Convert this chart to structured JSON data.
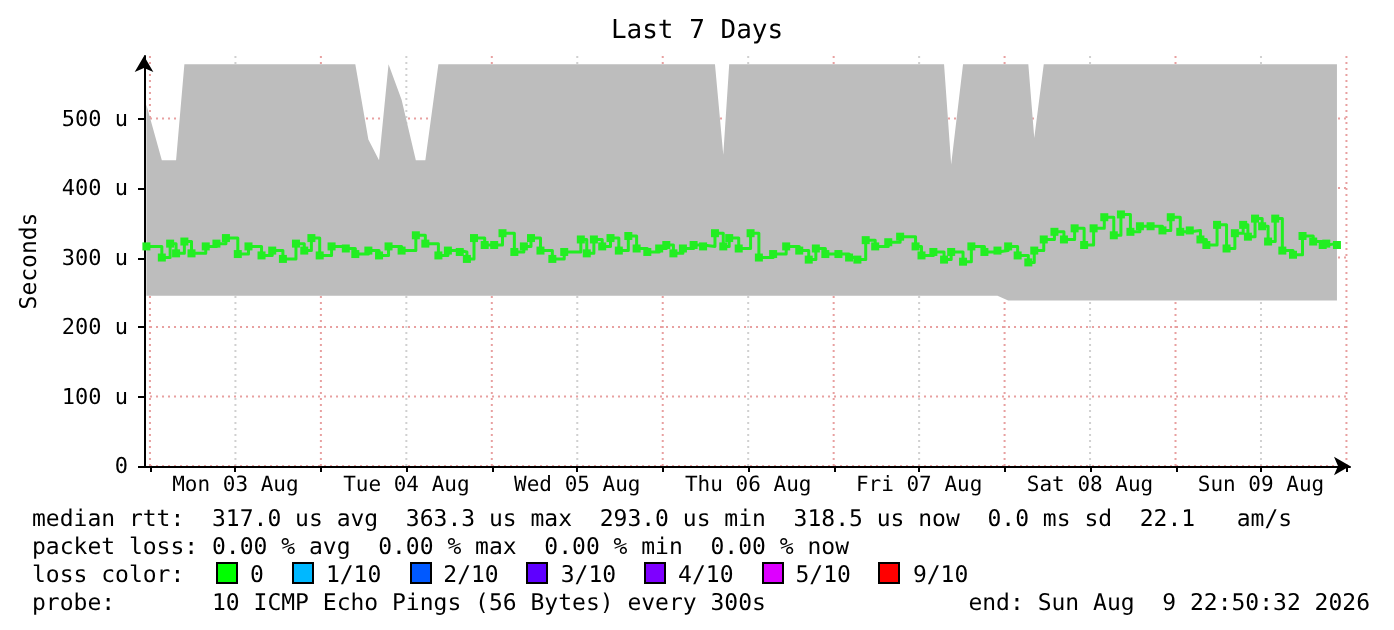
{
  "chart_data": {
    "type": "step",
    "title": "Last 7 Days",
    "ylabel": "Seconds",
    "xlim": [
      "2026-08-02T23:10",
      "2026-08-10T00:30"
    ],
    "xticks": [
      {
        "value": "2026-08-03T00:00",
        "label": null
      },
      {
        "value": "2026-08-03T12:00",
        "label": "Mon 03 Aug"
      },
      {
        "value": "2026-08-04T00:00",
        "label": null
      },
      {
        "value": "2026-08-04T12:00",
        "label": "Tue 04 Aug"
      },
      {
        "value": "2026-08-05T00:00",
        "label": null
      },
      {
        "value": "2026-08-05T12:00",
        "label": "Wed 05 Aug"
      },
      {
        "value": "2026-08-06T00:00",
        "label": null
      },
      {
        "value": "2026-08-06T12:00",
        "label": "Thu 06 Aug"
      },
      {
        "value": "2026-08-07T00:00",
        "label": null
      },
      {
        "value": "2026-08-07T12:00",
        "label": "Fri 07 Aug"
      },
      {
        "value": "2026-08-08T00:00",
        "label": null
      },
      {
        "value": "2026-08-08T12:00",
        "label": "Sat 08 Aug"
      },
      {
        "value": "2026-08-09T00:00",
        "label": null
      },
      {
        "value": "2026-08-09T12:00",
        "label": "Sun 09 Aug"
      },
      {
        "value": "2026-08-10T00:00",
        "label": null
      }
    ],
    "ylim": [
      0,
      590
    ],
    "yticks": [
      0,
      {
        "value": 100,
        "label": "100 u"
      },
      {
        "value": 200,
        "label": "200 u"
      },
      {
        "value": 300,
        "label": "300 u"
      },
      {
        "value": 400,
        "label": "400 u"
      },
      {
        "value": 500,
        "label": "500 u"
      }
    ],
    "grid": true,
    "marker": "square",
    "series": [
      {
        "color": "#22ee22",
        "x": [
          "2026-08-02T23:30",
          "2026-08-03T01:40",
          "2026-08-03T02:50",
          "2026-08-03T03:40",
          "2026-08-03T04:50",
          "2026-08-03T05:50",
          "2026-08-03T07:50",
          "2026-08-03T09:20",
          "2026-08-03T10:40",
          "2026-08-03T12:20",
          "2026-08-03T13:50",
          "2026-08-03T15:40",
          "2026-08-03T17:10",
          "2026-08-03T18:40",
          "2026-08-03T20:30",
          "2026-08-03T21:40",
          "2026-08-03T22:40",
          "2026-08-03T23:50",
          "2026-08-04T01:30",
          "2026-08-04T03:30",
          "2026-08-04T04:50",
          "2026-08-04T06:40",
          "2026-08-04T08:10",
          "2026-08-04T09:30",
          "2026-08-04T11:20",
          "2026-08-04T13:20",
          "2026-08-04T14:40",
          "2026-08-04T16:30",
          "2026-08-04T17:50",
          "2026-08-04T19:30",
          "2026-08-04T20:30",
          "2026-08-04T21:30",
          "2026-08-04T23:00",
          "2026-08-05T00:20",
          "2026-08-05T01:30",
          "2026-08-05T03:10",
          "2026-08-05T04:30",
          "2026-08-05T05:30",
          "2026-08-05T06:50",
          "2026-08-05T08:30",
          "2026-08-05T10:10",
          "2026-08-05T12:30",
          "2026-08-05T13:20",
          "2026-08-05T14:20",
          "2026-08-05T15:30",
          "2026-08-05T16:40",
          "2026-08-05T17:50",
          "2026-08-05T19:10",
          "2026-08-05T20:20",
          "2026-08-05T21:50",
          "2026-08-05T23:30",
          "2026-08-06T00:30",
          "2026-08-06T01:30",
          "2026-08-06T02:50",
          "2026-08-06T04:20",
          "2026-08-06T05:40",
          "2026-08-06T07:20",
          "2026-08-06T08:30",
          "2026-08-06T09:20",
          "2026-08-06T10:40",
          "2026-08-06T12:20",
          "2026-08-06T13:30",
          "2026-08-06T15:30",
          "2026-08-06T17:20",
          "2026-08-06T19:10",
          "2026-08-06T20:30",
          "2026-08-06T21:30",
          "2026-08-06T22:50",
          "2026-08-07T00:40",
          "2026-08-07T02:10",
          "2026-08-07T03:20",
          "2026-08-07T04:30",
          "2026-08-07T05:50",
          "2026-08-07T07:40",
          "2026-08-07T09:20",
          "2026-08-07T11:30",
          "2026-08-07T12:20",
          "2026-08-07T14:00",
          "2026-08-07T15:30",
          "2026-08-07T16:30",
          "2026-08-07T18:10",
          "2026-08-07T19:20",
          "2026-08-07T21:10",
          "2026-08-07T23:00",
          "2026-08-08T00:30",
          "2026-08-08T01:50",
          "2026-08-08T03:20",
          "2026-08-08T04:10",
          "2026-08-08T05:30",
          "2026-08-08T07:00",
          "2026-08-08T08:20",
          "2026-08-08T09:50",
          "2026-08-08T11:10",
          "2026-08-08T12:30",
          "2026-08-08T14:00",
          "2026-08-08T15:20",
          "2026-08-08T16:20",
          "2026-08-08T17:40",
          "2026-08-08T19:00",
          "2026-08-08T20:30",
          "2026-08-08T22:10",
          "2026-08-08T23:20",
          "2026-08-09T00:40",
          "2026-08-09T02:00",
          "2026-08-09T03:30",
          "2026-08-09T04:20",
          "2026-08-09T05:50",
          "2026-08-09T07:10",
          "2026-08-09T08:20",
          "2026-08-09T09:30",
          "2026-08-09T10:10",
          "2026-08-09T11:10",
          "2026-08-09T12:10",
          "2026-08-09T13:00",
          "2026-08-09T14:00",
          "2026-08-09T15:00",
          "2026-08-09T16:30",
          "2026-08-09T17:50",
          "2026-08-09T19:20",
          "2026-08-09T20:40",
          "2026-08-09T21:10",
          "2026-08-09T22:40"
        ],
        "values": [
          316,
          300,
          320,
          306,
          323,
          306,
          316,
          320,
          328,
          305,
          316,
          303,
          310,
          298,
          320,
          310,
          328,
          303,
          316,
          313,
          305,
          310,
          303,
          316,
          310,
          332,
          320,
          303,
          310,
          308,
          298,
          328,
          318,
          318,
          335,
          308,
          316,
          328,
          310,
          298,
          308,
          326,
          306,
          326,
          316,
          328,
          310,
          331,
          313,
          308,
          313,
          318,
          306,
          313,
          318,
          316,
          335,
          316,
          328,
          313,
          335,
          300,
          305,
          316,
          310,
          297,
          313,
          305,
          305,
          300,
          297,
          325,
          316,
          322,
          330,
          316,
          303,
          308,
          297,
          308,
          294,
          316,
          308,
          310,
          316,
          303,
          293,
          310,
          326,
          337,
          326,
          342,
          318,
          342,
          358,
          332,
          362,
          337,
          345,
          345,
          339,
          358,
          337,
          339,
          326,
          318,
          347,
          313,
          335,
          347,
          330,
          356,
          345,
          323,
          356,
          310,
          304,
          331,
          323,
          318,
          320,
          318
        ],
        "lower": [
          245,
          245,
          245,
          245,
          245,
          245,
          245,
          245,
          245,
          245,
          245,
          245,
          245,
          245,
          245,
          245,
          245,
          245,
          245,
          245,
          245,
          245,
          245,
          245,
          245,
          245,
          245,
          245,
          245,
          245,
          245,
          245,
          245,
          245,
          245,
          245,
          245,
          245,
          245,
          245,
          245,
          245,
          245,
          245,
          245,
          245,
          245,
          245,
          245,
          245,
          245,
          245,
          245,
          245,
          245,
          245,
          245,
          245,
          245,
          245,
          245,
          245,
          245,
          245,
          245,
          245,
          245,
          245,
          245,
          245,
          245,
          245,
          245,
          245,
          245,
          245,
          245,
          245,
          245,
          245,
          245,
          245,
          245,
          245,
          238,
          238,
          238,
          238,
          238,
          238,
          238,
          238,
          238,
          238,
          238,
          238,
          238,
          238,
          238,
          238,
          238,
          238,
          238,
          238,
          238,
          238,
          238,
          238,
          238,
          238,
          238,
          238,
          238,
          238,
          238,
          238,
          238,
          238,
          238,
          238,
          238,
          238
        ],
        "upper": [
          520,
          440,
          440,
          440,
          578,
          578,
          578,
          578,
          578,
          578,
          578,
          578,
          578,
          578,
          578,
          578,
          578,
          578,
          578,
          578,
          578,
          470,
          440,
          578,
          527,
          440,
          440,
          578,
          578,
          578,
          578,
          578,
          578,
          578,
          578,
          578,
          578,
          578,
          578,
          578,
          578,
          578,
          578,
          578,
          578,
          578,
          578,
          578,
          578,
          578,
          578,
          578,
          578,
          578,
          578,
          578,
          578,
          448,
          578,
          578,
          578,
          578,
          578,
          578,
          578,
          578,
          578,
          578,
          578,
          578,
          578,
          578,
          578,
          578,
          578,
          578,
          578,
          578,
          578,
          434,
          578,
          578,
          578,
          578,
          578,
          578,
          578,
          472,
          578,
          578,
          578,
          578,
          578,
          578,
          578,
          578,
          578,
          578,
          578,
          578,
          578,
          578,
          578,
          578,
          578,
          578,
          578,
          578,
          578,
          578,
          578,
          578,
          578,
          578,
          578,
          578,
          578,
          578,
          578,
          578,
          578,
          578
        ]
      }
    ],
    "annotations": [
      "median rtt:  317.0 us avg  363.3 us max  293.0 us min  318.5 us now  0.0 ms sd  22.1   am/s",
      "packet loss: 0.00 % avg  0.00 % max  0.00 % min  0.00 % now",
      "loss color:",
      "0",
      "1/10",
      "2/10",
      "3/10",
      "4/10",
      "5/10",
      "9/10",
      "probe:       10 ICMP Echo Pings (56 Bytes) every 300s",
      "end: Sun Aug  9 22:50:32 2026"
    ]
  }
}
